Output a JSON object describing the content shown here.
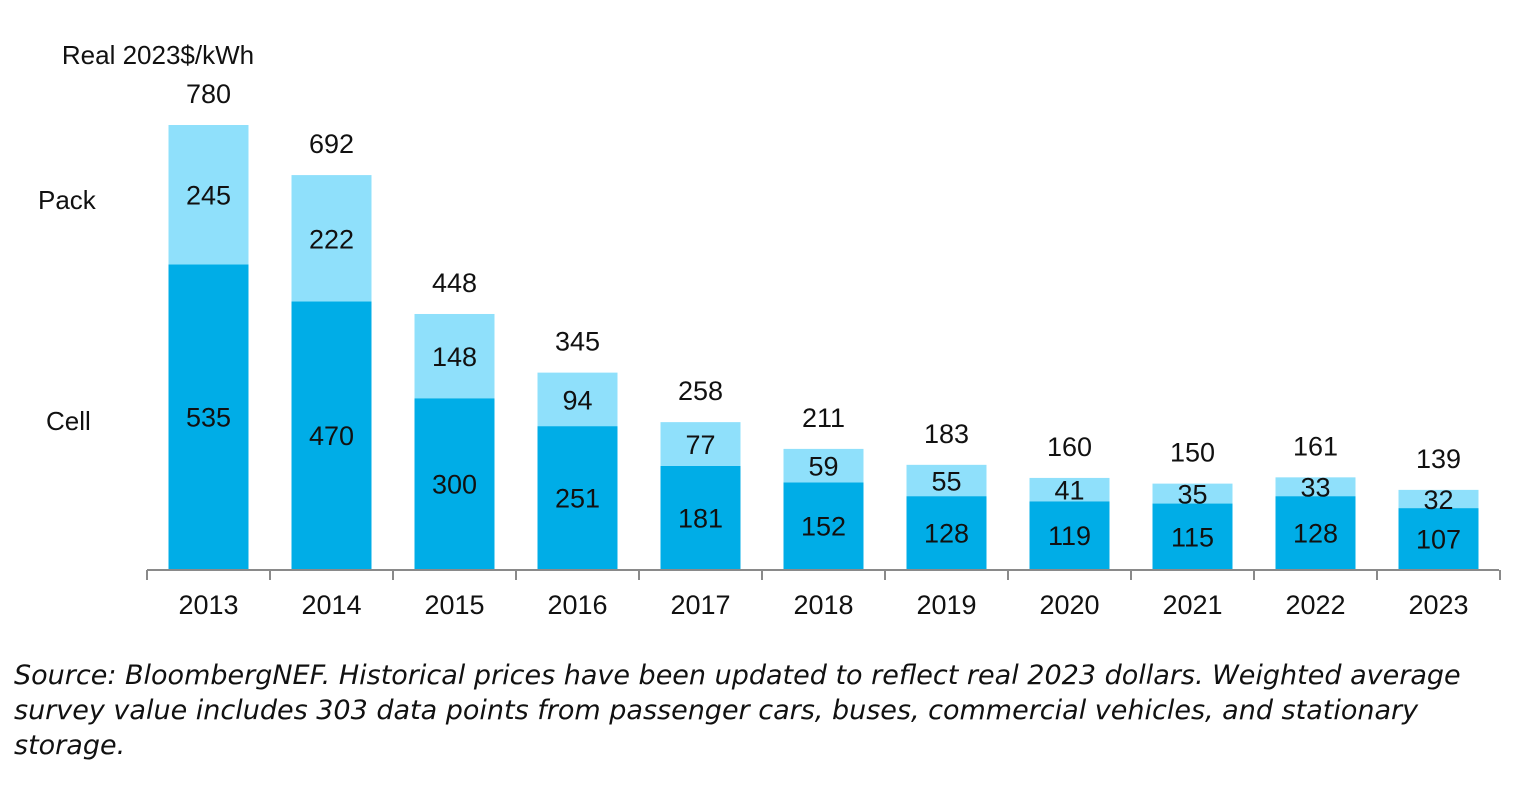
{
  "chart_data": {
    "type": "bar",
    "stacked": true,
    "ylabel": "Real 2023$/kWh",
    "categories": [
      "2013",
      "2014",
      "2015",
      "2016",
      "2017",
      "2018",
      "2019",
      "2020",
      "2021",
      "2022",
      "2023"
    ],
    "series": [
      {
        "name": "Cell",
        "color": "#00ade7",
        "values": [
          535,
          470,
          300,
          251,
          181,
          152,
          128,
          119,
          115,
          128,
          107
        ]
      },
      {
        "name": "Pack",
        "color": "#8fe0fb",
        "values": [
          245,
          222,
          148,
          94,
          77,
          59,
          55,
          41,
          35,
          33,
          32
        ]
      }
    ],
    "totals": [
      780,
      692,
      448,
      345,
      258,
      211,
      183,
      160,
      150,
      161,
      139
    ],
    "ylim": [
      0,
      800
    ],
    "grid": false,
    "legend": "left, inline beside first bar"
  },
  "source_note": "Source: BloombergNEF. Historical prices have been updated to reflect real 2023 dollars. Weighted average survey value includes 303 data points from passenger cars, buses, commercial vehicles, and stationary storage."
}
